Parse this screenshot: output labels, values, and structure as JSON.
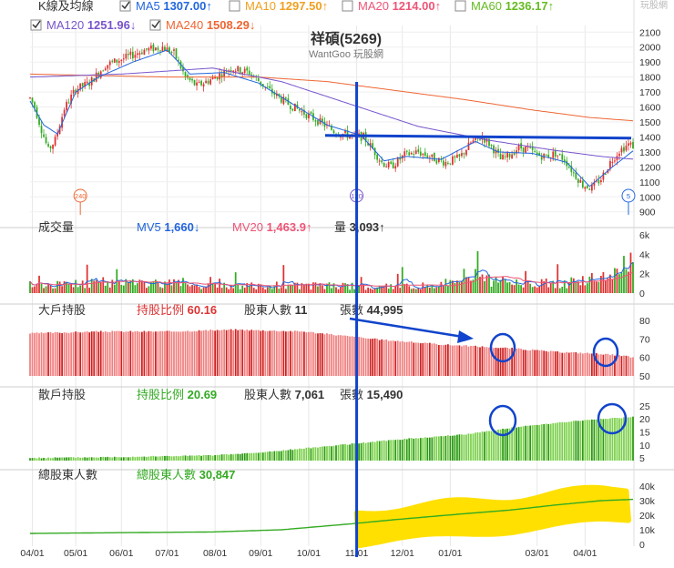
{
  "chart_data": [
    {
      "type": "candlestick",
      "panel": "price",
      "title": "祥碩(5269)",
      "subtitle": "WantGoo 玩股網",
      "watermark": "玩股網",
      "header_label": "K線及均線",
      "indicators": [
        {
          "name": "MA5",
          "value": "1307.00",
          "arrow": "↑",
          "color": "#2266dd",
          "checked": true
        },
        {
          "name": "MA10",
          "value": "1297.50",
          "arrow": "↑",
          "color": "#f0a020",
          "checked": false
        },
        {
          "name": "MA20",
          "value": "1214.00",
          "arrow": "↑",
          "color": "#ee5577",
          "checked": false
        },
        {
          "name": "MA60",
          "value": "1236.17",
          "arrow": "↑",
          "color": "#66bb22",
          "checked": false
        },
        {
          "name": "MA120",
          "value": "1251.96",
          "arrow": "↓",
          "color": "#7755cc",
          "checked": true
        },
        {
          "name": "MA240",
          "value": "1508.29",
          "arrow": "↓",
          "color": "#ee6633",
          "checked": true
        }
      ],
      "yticks": [
        2100,
        2000,
        1900,
        1800,
        1700,
        1600,
        1500,
        1400,
        1300,
        1200,
        1100,
        1000,
        900
      ],
      "ylim": [
        880,
        2120
      ],
      "price_path": [
        [
          0,
          1660
        ],
        [
          2,
          1600
        ],
        [
          5,
          1450
        ],
        [
          8,
          1310
        ],
        [
          11,
          1380
        ],
        [
          15,
          1590
        ],
        [
          20,
          1720
        ],
        [
          26,
          1760
        ],
        [
          33,
          1880
        ],
        [
          42,
          1930
        ],
        [
          50,
          1980
        ],
        [
          58,
          2000
        ],
        [
          63,
          1960
        ],
        [
          68,
          1800
        ],
        [
          73,
          1740
        ],
        [
          80,
          1790
        ],
        [
          88,
          1860
        ],
        [
          96,
          1830
        ],
        [
          104,
          1720
        ],
        [
          112,
          1630
        ],
        [
          120,
          1560
        ],
        [
          128,
          1490
        ],
        [
          134,
          1430
        ],
        [
          140,
          1410
        ],
        [
          146,
          1400
        ],
        [
          150,
          1320
        ],
        [
          154,
          1230
        ],
        [
          158,
          1200
        ],
        [
          164,
          1280
        ],
        [
          170,
          1300
        ],
        [
          176,
          1260
        ],
        [
          182,
          1230
        ],
        [
          188,
          1260
        ],
        [
          193,
          1360
        ],
        [
          198,
          1400
        ],
        [
          202,
          1340
        ],
        [
          206,
          1250
        ],
        [
          210,
          1280
        ],
        [
          214,
          1330
        ],
        [
          218,
          1320
        ],
        [
          222,
          1280
        ],
        [
          226,
          1270
        ],
        [
          230,
          1290
        ],
        [
          234,
          1250
        ],
        [
          238,
          1160
        ],
        [
          242,
          1080
        ],
        [
          246,
          1060
        ],
        [
          250,
          1120
        ],
        [
          254,
          1230
        ],
        [
          258,
          1310
        ],
        [
          262,
          1350
        ],
        [
          264,
          1340
        ]
      ],
      "ma5": [
        [
          0,
          1640
        ],
        [
          6,
          1480
        ],
        [
          12,
          1420
        ],
        [
          20,
          1700
        ],
        [
          30,
          1800
        ],
        [
          45,
          1900
        ],
        [
          60,
          1980
        ],
        [
          70,
          1820
        ],
        [
          85,
          1830
        ],
        [
          100,
          1760
        ],
        [
          115,
          1620
        ],
        [
          130,
          1480
        ],
        [
          145,
          1410
        ],
        [
          155,
          1240
        ],
        [
          165,
          1270
        ],
        [
          180,
          1250
        ],
        [
          195,
          1370
        ],
        [
          205,
          1300
        ],
        [
          220,
          1290
        ],
        [
          235,
          1230
        ],
        [
          245,
          1070
        ],
        [
          255,
          1200
        ],
        [
          264,
          1307
        ]
      ],
      "ma120": [
        [
          0,
          1800
        ],
        [
          40,
          1820
        ],
        [
          80,
          1860
        ],
        [
          110,
          1770
        ],
        [
          140,
          1620
        ],
        [
          170,
          1470
        ],
        [
          200,
          1380
        ],
        [
          230,
          1310
        ],
        [
          250,
          1270
        ],
        [
          264,
          1252
        ]
      ],
      "ma240": [
        [
          0,
          1820
        ],
        [
          60,
          1800
        ],
        [
          100,
          1800
        ],
        [
          130,
          1770
        ],
        [
          160,
          1710
        ],
        [
          190,
          1650
        ],
        [
          220,
          1580
        ],
        [
          245,
          1530
        ],
        [
          264,
          1508
        ]
      ],
      "markers": [
        {
          "label": "240",
          "x": 22,
          "color": "#ee6633"
        },
        {
          "label": "120",
          "x": 143,
          "color": "#7755cc"
        },
        {
          "label": "5",
          "x": 262,
          "color": "#2266dd"
        }
      ],
      "resistance_line": 1410
    },
    {
      "type": "bar",
      "panel": "volume",
      "label": "成交量",
      "indicators": [
        {
          "name": "MV5",
          "value": "1,660",
          "arrow": "↓",
          "color": "#2266dd"
        },
        {
          "name": "MV20",
          "value": "1,463.9",
          "arrow": "↑",
          "color": "#ee5577"
        },
        {
          "name": "量",
          "value": "3,093",
          "arrow": "↑",
          "color": "#333333"
        }
      ],
      "yticks": [
        "6k",
        "4k",
        "2k",
        "0"
      ],
      "ylim": [
        0,
        6000
      ],
      "level_path": [
        [
          0,
          1000
        ],
        [
          40,
          1200
        ],
        [
          80,
          1000
        ],
        [
          120,
          900
        ],
        [
          150,
          800
        ],
        [
          180,
          900
        ],
        [
          190,
          2200
        ],
        [
          200,
          1500
        ],
        [
          220,
          1100
        ],
        [
          240,
          1300
        ],
        [
          258,
          2200
        ],
        [
          262,
          4500
        ],
        [
          264,
          3093
        ]
      ]
    },
    {
      "type": "bar",
      "panel": "large_holders",
      "label": "大戶持股",
      "indicators": [
        {
          "name": "持股比例",
          "value": "60.16",
          "color": "#dd3333"
        },
        {
          "name": "股東人數",
          "value": "11",
          "color": "#333333"
        },
        {
          "name": "張數",
          "value": "44,995",
          "color": "#333333"
        }
      ],
      "yticks": [
        80,
        70,
        60,
        50
      ],
      "ylim": [
        50,
        80
      ],
      "level_path": [
        [
          0,
          73
        ],
        [
          30,
          74
        ],
        [
          60,
          74
        ],
        [
          90,
          75
        ],
        [
          120,
          74
        ],
        [
          150,
          70
        ],
        [
          180,
          67
        ],
        [
          210,
          65
        ],
        [
          230,
          63
        ],
        [
          250,
          62
        ],
        [
          264,
          60.16
        ]
      ]
    },
    {
      "type": "bar",
      "panel": "retail_holders",
      "label": "散戶持股",
      "indicators": [
        {
          "name": "持股比例",
          "value": "20.69",
          "color": "#33aa22"
        },
        {
          "name": "股東人數",
          "value": "7,061",
          "color": "#333333"
        },
        {
          "name": "張數",
          "value": "15,490",
          "color": "#333333"
        }
      ],
      "yticks": [
        25,
        20,
        15,
        10,
        5
      ],
      "ylim": [
        4,
        26
      ],
      "level_path": [
        [
          0,
          5
        ],
        [
          40,
          5.4
        ],
        [
          80,
          6
        ],
        [
          100,
          7
        ],
        [
          130,
          9.5
        ],
        [
          160,
          12
        ],
        [
          190,
          14
        ],
        [
          210,
          16.5
        ],
        [
          230,
          18.5
        ],
        [
          250,
          20
        ],
        [
          264,
          20.69
        ]
      ]
    },
    {
      "type": "line",
      "panel": "total_holders",
      "label": "總股東人數",
      "indicators": [
        {
          "name": "總股東人數",
          "value": "30,847",
          "color": "#33aa22"
        }
      ],
      "yticks": [
        "40k",
        "30k",
        "20k",
        "10k",
        "0"
      ],
      "ylim": [
        0,
        40000
      ],
      "line_path": [
        [
          0,
          7500
        ],
        [
          40,
          8000
        ],
        [
          80,
          8500
        ],
        [
          110,
          10000
        ],
        [
          140,
          14000
        ],
        [
          160,
          17000
        ],
        [
          190,
          21000
        ],
        [
          210,
          23500
        ],
        [
          230,
          27000
        ],
        [
          250,
          30000
        ],
        [
          264,
          30847
        ]
      ]
    }
  ],
  "x_axis": {
    "n_days": 265,
    "labels": [
      {
        "text": "04/01",
        "x": 1
      },
      {
        "text": "05/01",
        "x": 20
      },
      {
        "text": "06/01",
        "x": 40
      },
      {
        "text": "07/01",
        "x": 60
      },
      {
        "text": "08/01",
        "x": 81
      },
      {
        "text": "09/01",
        "x": 101
      },
      {
        "text": "10/01",
        "x": 122
      },
      {
        "text": "11/01",
        "x": 143
      },
      {
        "text": "12/01",
        "x": 163
      },
      {
        "text": "01/01",
        "x": 184
      },
      {
        "text": "03/01",
        "x": 222
      },
      {
        "text": "04/01",
        "x": 243
      }
    ]
  },
  "overlays": {
    "vertical_line_x": 143,
    "highlight_x_range": [
      143,
      262
    ]
  },
  "colors": {
    "up": "#e03030",
    "down": "#33aa22",
    "annotation": "#1144cc",
    "highlight": "#ffe000"
  }
}
